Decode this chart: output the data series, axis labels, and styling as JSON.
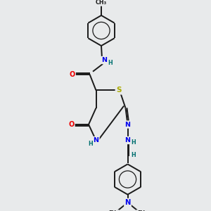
{
  "background_color": "#e8eaeb",
  "bond_color": "#1a1a1a",
  "atom_colors": {
    "N": "#0000ee",
    "O": "#ee0000",
    "S": "#aaaa00",
    "H": "#007070",
    "C": "#1a1a1a"
  },
  "figsize": [
    3.0,
    3.0
  ],
  "dpi": 100,
  "xlim": [
    0,
    10
  ],
  "ylim": [
    0,
    10
  ]
}
